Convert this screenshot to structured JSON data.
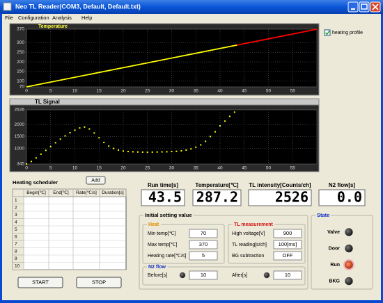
{
  "window": {
    "title": "Neo TL Reader(COM3, Default, Default.txt)"
  },
  "menu": [
    "File",
    "Configuration",
    "Analysis",
    "Help"
  ],
  "temperature_chart": {
    "type": "line",
    "title": "Temperature",
    "xlim": [
      0,
      60
    ],
    "ylim": [
      70,
      370
    ],
    "xticks": [
      0,
      5,
      10,
      15,
      20,
      25,
      30,
      35,
      40,
      45,
      50,
      55
    ],
    "yticks": [
      70,
      100,
      150,
      200,
      250,
      300,
      370
    ],
    "grid": true,
    "series": [
      {
        "color": "#ffff00",
        "x": [
          0,
          43.5
        ],
        "values": [
          70,
          287.2
        ]
      },
      {
        "color": "#ff0000",
        "x": [
          43.5,
          60
        ],
        "values": [
          287.2,
          370
        ]
      }
    ]
  },
  "heating_profile": {
    "label": "heating profile",
    "checked": true
  },
  "tl_chart": {
    "type": "scatter",
    "title": "TL Signal",
    "xlim": [
      0,
      60
    ],
    "ylim": [
      345,
      2626
    ],
    "xticks": [
      0,
      5,
      10,
      15,
      20,
      25,
      30,
      35,
      40,
      45,
      50,
      55
    ],
    "yticks": [
      345,
      1000,
      1500,
      2000,
      2626
    ],
    "grid": true,
    "series": [
      {
        "color": "#ffff00",
        "x": [
          0,
          1,
          2,
          3,
          4,
          5,
          6,
          7,
          8,
          9,
          10,
          11,
          12,
          13,
          14,
          15,
          16,
          17,
          18,
          19,
          20,
          21,
          22,
          23,
          24,
          25,
          26,
          27,
          28,
          29,
          30,
          31,
          32,
          33,
          34,
          35,
          36,
          37,
          38,
          39,
          40,
          41,
          42,
          43
        ],
        "values": [
          345,
          450,
          600,
          760,
          920,
          1080,
          1240,
          1390,
          1530,
          1660,
          1770,
          1860,
          1900,
          1820,
          1650,
          1450,
          1250,
          1100,
          1000,
          930,
          890,
          870,
          860,
          850,
          845,
          840,
          845,
          850,
          855,
          860,
          870,
          880,
          900,
          930,
          980,
          1050,
          1150,
          1300,
          1500,
          1700,
          1950,
          2150,
          2350,
          2526
        ]
      }
    ]
  },
  "readouts": [
    {
      "label": "Run time[s]",
      "value": "43.5"
    },
    {
      "label": "Temperature[℃]",
      "value": "287.2"
    },
    {
      "label": "TL intensity[Counts/ch]",
      "value": "2526"
    },
    {
      "label": "N2 flow[s]",
      "value": "0.0"
    }
  ],
  "heating_scheduler": {
    "title": "Heating scheduler",
    "add_button": "Add",
    "columns": [
      "Begin[℃]",
      "End[℃]",
      "Rate[℃/s]",
      "Duration[s]"
    ],
    "row_numbers": [
      1,
      2,
      3,
      4,
      5,
      6,
      7,
      8,
      9,
      10
    ]
  },
  "buttons": {
    "start": "START",
    "stop": "STOP"
  },
  "initial_setting": {
    "title": "Initial setting value",
    "heat": {
      "title": "Heat",
      "fields": [
        {
          "label": "Min temp[℃]",
          "value": "70"
        },
        {
          "label": "Max temp[℃]",
          "value": "370"
        },
        {
          "label": "Heating rate[℃/s]",
          "value": "5"
        }
      ]
    },
    "tl_measurement": {
      "title": "TL measurement",
      "fields": [
        {
          "label": "High voltage[V]",
          "value": "900"
        },
        {
          "label": "TL reading[s/ch]",
          "value": "100[ms]"
        },
        {
          "label": "BG subtraction",
          "value": "OFF"
        }
      ]
    },
    "n2_flow": {
      "title": "N2 flow",
      "fields": [
        {
          "label": "Before[s]",
          "value": "10"
        },
        {
          "label": "After[s]",
          "value": "10"
        }
      ]
    }
  },
  "state": {
    "title": "State",
    "items": [
      "Valve",
      "Door",
      "Run",
      "BKG"
    ],
    "active": "Run"
  }
}
